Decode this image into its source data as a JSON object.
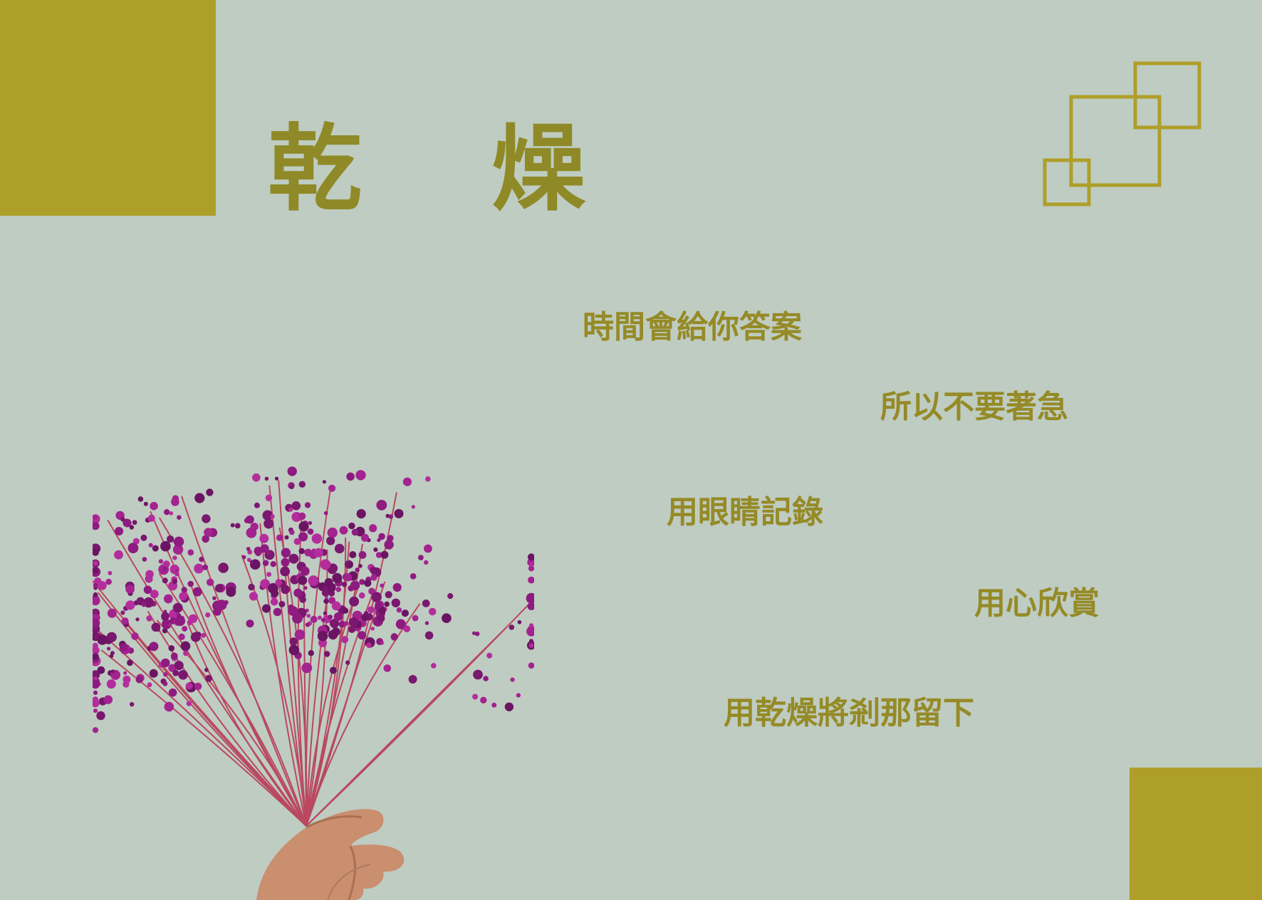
{
  "title": {
    "char_1": "乾",
    "char_2": "燥"
  },
  "poem": {
    "line_1": "時間會給你答案",
    "line_2": "所以不要著急",
    "line_3": "用眼睛記錄",
    "line_4": "用心欣賞",
    "line_5": "用乾燥將剎那留下"
  },
  "colors": {
    "background": "#bfccc2",
    "accent_gold": "#ae9f2a",
    "text_olive": "#958a26",
    "flower_magenta": "#9a1f86",
    "stem_red": "#b8324f"
  },
  "images": {
    "photo": "dried-flower-bouquet-in-hand"
  }
}
